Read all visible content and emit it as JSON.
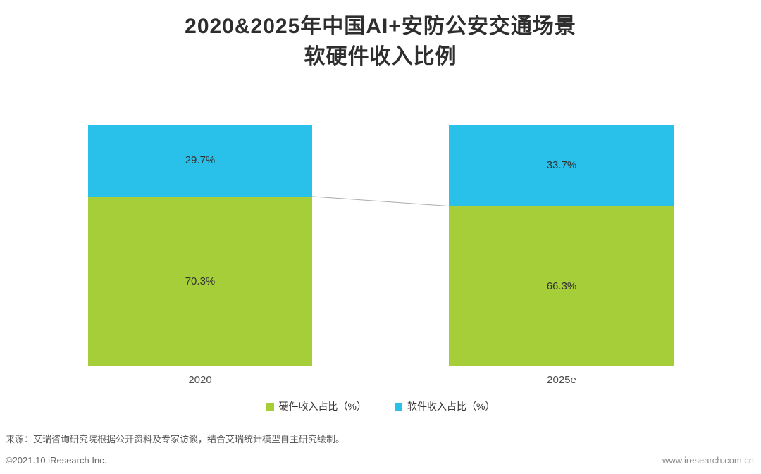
{
  "header": {
    "title_line1": "2020&2025年中国AI+安防公安交通场景",
    "title_line2": "软硬件收入比例"
  },
  "chart_data": {
    "type": "bar",
    "stacked": true,
    "title": "2020&2025年中国AI+安防公安交通场景软硬件收入比例",
    "categories": [
      "2020",
      "2025e"
    ],
    "series": [
      {
        "name": "硬件收入占比（%）",
        "color": "#a5ce39",
        "values": [
          70.3,
          66.3
        ]
      },
      {
        "name": "软件收入占比（%）",
        "color": "#29c1ea",
        "values": [
          29.7,
          33.7
        ]
      }
    ],
    "value_suffix": "%",
    "ylim": [
      0,
      100
    ],
    "grid": false,
    "legend_position": "bottom"
  },
  "source": "来源：艾瑞咨询研究院根据公开资料及专家访谈，结合艾瑞统计模型自主研究绘制。",
  "footer": {
    "copyright": "©2021.10 iResearch Inc.",
    "website": "www.iresearch.com.cn"
  }
}
